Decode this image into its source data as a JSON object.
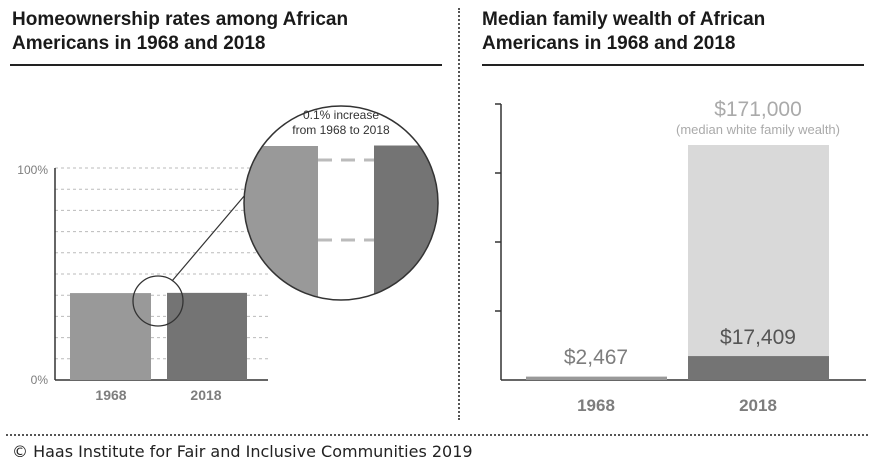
{
  "footer": "© Haas Institute for Fair and Inclusive Communities 2019",
  "colors": {
    "bar_1968": "#999999",
    "bar_2018": "#747474",
    "white_bar": "#d9d9d9",
    "axis": "#333333",
    "grid": "#bbbbbb",
    "label": "#7d7d7d"
  },
  "chart_data": [
    {
      "type": "bar",
      "title": "Homeownership rates among African Americans in 1968 and 2018",
      "categories": [
        "1968",
        "2018"
      ],
      "values": [
        41.0,
        41.1
      ],
      "unit": "%",
      "ylim": [
        0,
        100
      ],
      "ytick_labels": [
        "0%",
        "100%"
      ],
      "gridlines": true,
      "annotation": {
        "line1": "0.1% increase",
        "line2": "from 1968 to 2018"
      }
    },
    {
      "type": "bar",
      "title": "Median family wealth of African Americans in 1968 and 2018",
      "categories": [
        "1968",
        "2018"
      ],
      "values": [
        2467,
        17409
      ],
      "value_labels": [
        "$2,467",
        "$17,409"
      ],
      "unit": "$",
      "ylim": [
        0,
        171000
      ],
      "reference": {
        "value": 171000,
        "label": "$171,000",
        "sublabel": "(median white family wealth)",
        "category": "2018"
      }
    }
  ]
}
